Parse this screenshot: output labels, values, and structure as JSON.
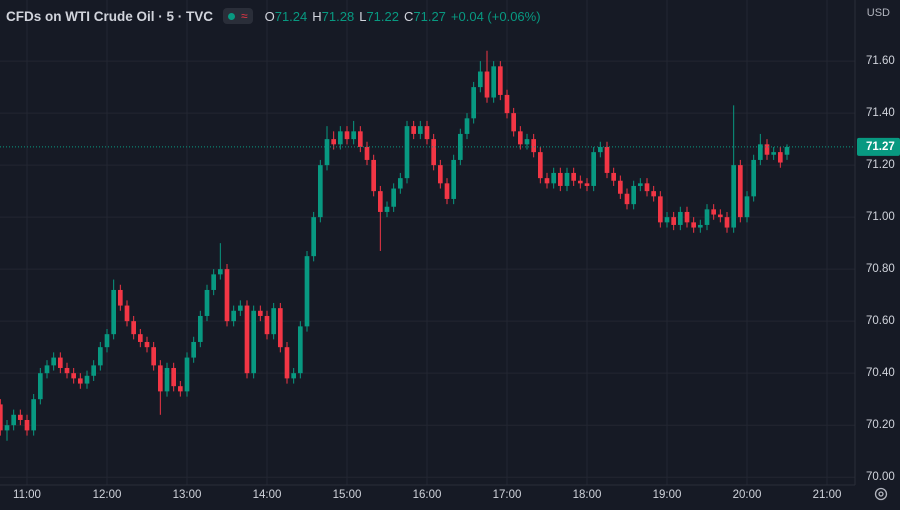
{
  "header": {
    "title": "CFDs on WTI Crude Oil · 5 · TVC",
    "keys": [
      "O",
      "H",
      "L",
      "C"
    ],
    "change": "+0.04 (+0.06%)",
    "currency": "USD"
  },
  "chart_data": {
    "type": "candlestick",
    "up_color": "#089981",
    "down_color": "#f23645",
    "x": [
      640,
      645,
      650,
      655,
      660,
      665,
      670,
      675,
      680,
      685,
      690,
      695,
      700,
      705,
      710,
      715,
      720,
      725,
      730,
      735,
      740,
      745,
      750,
      755,
      760,
      765,
      770,
      775,
      780,
      785,
      790,
      795,
      800,
      805,
      810,
      815,
      820,
      825,
      830,
      835,
      840,
      845,
      850,
      855,
      860,
      865,
      870,
      875,
      880,
      885,
      890,
      895,
      900,
      905,
      910,
      915,
      920,
      925,
      930,
      935,
      940,
      945,
      950,
      955,
      960,
      965,
      970,
      975,
      980,
      985,
      990,
      995,
      1000,
      1005,
      1010,
      1015,
      1020,
      1025,
      1030,
      1035,
      1040,
      1045,
      1050,
      1055,
      1060,
      1065,
      1070,
      1075,
      1080,
      1085,
      1090,
      1095,
      1100,
      1105,
      1110,
      1115,
      1120,
      1125,
      1130,
      1135,
      1140,
      1145,
      1150,
      1155,
      1160,
      1165,
      1170,
      1175,
      1180,
      1185,
      1190,
      1195,
      1200,
      1205,
      1210,
      1215,
      1220,
      1225,
      1230
    ],
    "open": [
      70.28,
      70.18,
      70.2,
      70.24,
      70.22,
      70.18,
      70.3,
      70.4,
      70.43,
      70.46,
      70.42,
      70.4,
      70.38,
      70.36,
      70.39,
      70.43,
      70.5,
      70.55,
      70.72,
      70.66,
      70.6,
      70.55,
      70.52,
      70.5,
      70.43,
      70.33,
      70.42,
      70.35,
      70.33,
      70.46,
      70.52,
      70.62,
      70.72,
      70.78,
      70.8,
      70.6,
      70.64,
      70.66,
      70.4,
      70.64,
      70.62,
      70.55,
      70.65,
      70.5,
      70.38,
      70.4,
      70.58,
      70.85,
      71.0,
      71.2,
      71.3,
      71.28,
      71.33,
      71.3,
      71.33,
      71.27,
      71.22,
      71.1,
      71.02,
      71.04,
      71.11,
      71.15,
      71.35,
      71.32,
      71.35,
      71.3,
      71.2,
      71.13,
      71.07,
      71.22,
      71.32,
      71.38,
      71.5,
      71.56,
      71.46,
      71.58,
      71.47,
      71.4,
      71.33,
      71.28,
      71.3,
      71.25,
      71.15,
      71.13,
      71.17,
      71.12,
      71.17,
      71.14,
      71.13,
      71.12,
      71.25,
      71.27,
      71.17,
      71.14,
      71.09,
      71.05,
      71.12,
      71.13,
      71.1,
      71.08,
      70.98,
      71.0,
      70.97,
      71.02,
      70.98,
      70.96,
      70.97,
      71.03,
      71.01,
      71.0,
      70.96,
      71.2,
      71.0,
      71.08,
      71.22,
      71.28,
      71.24,
      71.25,
      71.24
    ],
    "high": [
      70.3,
      70.22,
      70.26,
      70.26,
      70.24,
      70.32,
      70.42,
      70.45,
      70.48,
      70.48,
      70.44,
      70.42,
      70.4,
      70.41,
      70.45,
      70.52,
      70.57,
      70.76,
      70.74,
      70.68,
      70.62,
      70.57,
      70.54,
      70.52,
      70.45,
      70.44,
      70.44,
      70.37,
      70.48,
      70.54,
      70.64,
      70.74,
      70.8,
      70.9,
      70.82,
      70.66,
      70.68,
      70.68,
      70.66,
      70.66,
      70.64,
      70.67,
      70.67,
      70.52,
      70.42,
      70.6,
      70.87,
      71.02,
      71.22,
      71.35,
      71.33,
      71.35,
      71.35,
      71.37,
      71.35,
      71.29,
      71.24,
      71.12,
      71.06,
      71.13,
      71.17,
      71.37,
      71.37,
      71.37,
      71.37,
      71.32,
      71.22,
      71.15,
      71.24,
      71.34,
      71.4,
      71.52,
      71.6,
      71.64,
      71.6,
      71.6,
      71.49,
      71.42,
      71.35,
      71.32,
      71.32,
      71.27,
      71.17,
      71.19,
      71.19,
      71.19,
      71.19,
      71.16,
      71.15,
      71.27,
      71.29,
      71.29,
      71.19,
      71.16,
      71.11,
      71.14,
      71.15,
      71.15,
      71.12,
      71.1,
      71.02,
      71.02,
      71.04,
      71.04,
      71.0,
      70.99,
      71.05,
      71.05,
      71.03,
      71.02,
      71.43,
      71.22,
      71.1,
      71.24,
      71.32,
      71.3,
      71.27,
      71.27,
      71.28
    ],
    "low": [
      70.16,
      70.14,
      70.18,
      70.2,
      70.16,
      70.16,
      70.28,
      70.38,
      70.41,
      70.4,
      70.38,
      70.36,
      70.34,
      70.34,
      70.37,
      70.41,
      70.48,
      70.53,
      70.64,
      70.58,
      70.53,
      70.5,
      70.48,
      70.41,
      70.24,
      70.31,
      70.33,
      70.31,
      70.31,
      70.44,
      70.5,
      70.6,
      70.7,
      70.76,
      70.58,
      70.58,
      70.62,
      70.38,
      70.38,
      70.6,
      70.53,
      70.53,
      70.48,
      70.36,
      70.36,
      70.38,
      70.56,
      70.83,
      70.98,
      71.18,
      71.26,
      71.26,
      71.28,
      71.28,
      71.25,
      71.2,
      71.08,
      70.87,
      71.0,
      71.02,
      71.09,
      71.13,
      71.3,
      71.3,
      71.28,
      71.18,
      71.11,
      71.05,
      71.05,
      71.2,
      71.3,
      71.36,
      71.48,
      71.44,
      71.44,
      71.45,
      71.38,
      71.31,
      71.26,
      71.26,
      71.23,
      71.13,
      71.11,
      71.11,
      71.1,
      71.1,
      71.12,
      71.11,
      71.1,
      71.1,
      71.23,
      71.15,
      71.12,
      71.07,
      71.03,
      71.03,
      71.1,
      71.08,
      71.06,
      70.96,
      70.96,
      70.95,
      70.95,
      70.96,
      70.94,
      70.94,
      70.95,
      70.99,
      70.98,
      70.94,
      70.94,
      70.98,
      70.98,
      71.06,
      71.2,
      71.22,
      71.22,
      71.19,
      71.22
    ],
    "close": [
      70.18,
      70.2,
      70.24,
      70.22,
      70.18,
      70.3,
      70.4,
      70.43,
      70.46,
      70.42,
      70.4,
      70.38,
      70.36,
      70.39,
      70.43,
      70.5,
      70.55,
      70.72,
      70.66,
      70.6,
      70.55,
      70.52,
      70.5,
      70.43,
      70.33,
      70.42,
      70.35,
      70.33,
      70.46,
      70.52,
      70.62,
      70.72,
      70.78,
      70.8,
      70.6,
      70.64,
      70.66,
      70.4,
      70.64,
      70.62,
      70.55,
      70.65,
      70.5,
      70.38,
      70.4,
      70.58,
      70.85,
      71.0,
      71.2,
      71.3,
      71.28,
      71.33,
      71.3,
      71.33,
      71.27,
      71.22,
      71.1,
      71.02,
      71.04,
      71.11,
      71.15,
      71.35,
      71.32,
      71.35,
      71.3,
      71.2,
      71.13,
      71.07,
      71.22,
      71.32,
      71.38,
      71.5,
      71.56,
      71.46,
      71.58,
      71.47,
      71.4,
      71.33,
      71.28,
      71.3,
      71.25,
      71.15,
      71.13,
      71.17,
      71.12,
      71.17,
      71.14,
      71.13,
      71.12,
      71.25,
      71.27,
      71.17,
      71.14,
      71.09,
      71.05,
      71.12,
      71.13,
      71.1,
      71.08,
      70.98,
      71.0,
      70.97,
      71.02,
      70.98,
      70.96,
      70.97,
      71.03,
      71.01,
      71.0,
      70.96,
      71.2,
      71.0,
      71.08,
      71.22,
      71.28,
      71.24,
      71.25,
      71.21,
      71.27
    ],
    "xlim": [
      639.75,
      1281
    ],
    "ylim": [
      69.97,
      71.835
    ],
    "xticks": [
      {
        "value": 660,
        "label": "11:00"
      },
      {
        "value": 720,
        "label": "12:00"
      },
      {
        "value": 780,
        "label": "13:00"
      },
      {
        "value": 840,
        "label": "14:00"
      },
      {
        "value": 900,
        "label": "15:00"
      },
      {
        "value": 960,
        "label": "16:00"
      },
      {
        "value": 1020,
        "label": "17:00"
      },
      {
        "value": 1080,
        "label": "18:00"
      },
      {
        "value": 1140,
        "label": "19:00"
      },
      {
        "value": 1200,
        "label": "20:00"
      },
      {
        "value": 1260,
        "label": "21:00"
      }
    ],
    "yticks": [
      {
        "value": 70.0,
        "label": "70.00"
      },
      {
        "value": 70.2,
        "label": "70.20"
      },
      {
        "value": 70.4,
        "label": "70.40"
      },
      {
        "value": 70.6,
        "label": "70.60"
      },
      {
        "value": 70.8,
        "label": "70.80"
      },
      {
        "value": 71.0,
        "label": "71.00"
      },
      {
        "value": 71.2,
        "label": "71.20"
      },
      {
        "value": 71.4,
        "label": "71.40"
      },
      {
        "value": 71.6,
        "label": "71.60"
      }
    ],
    "grid": true
  }
}
